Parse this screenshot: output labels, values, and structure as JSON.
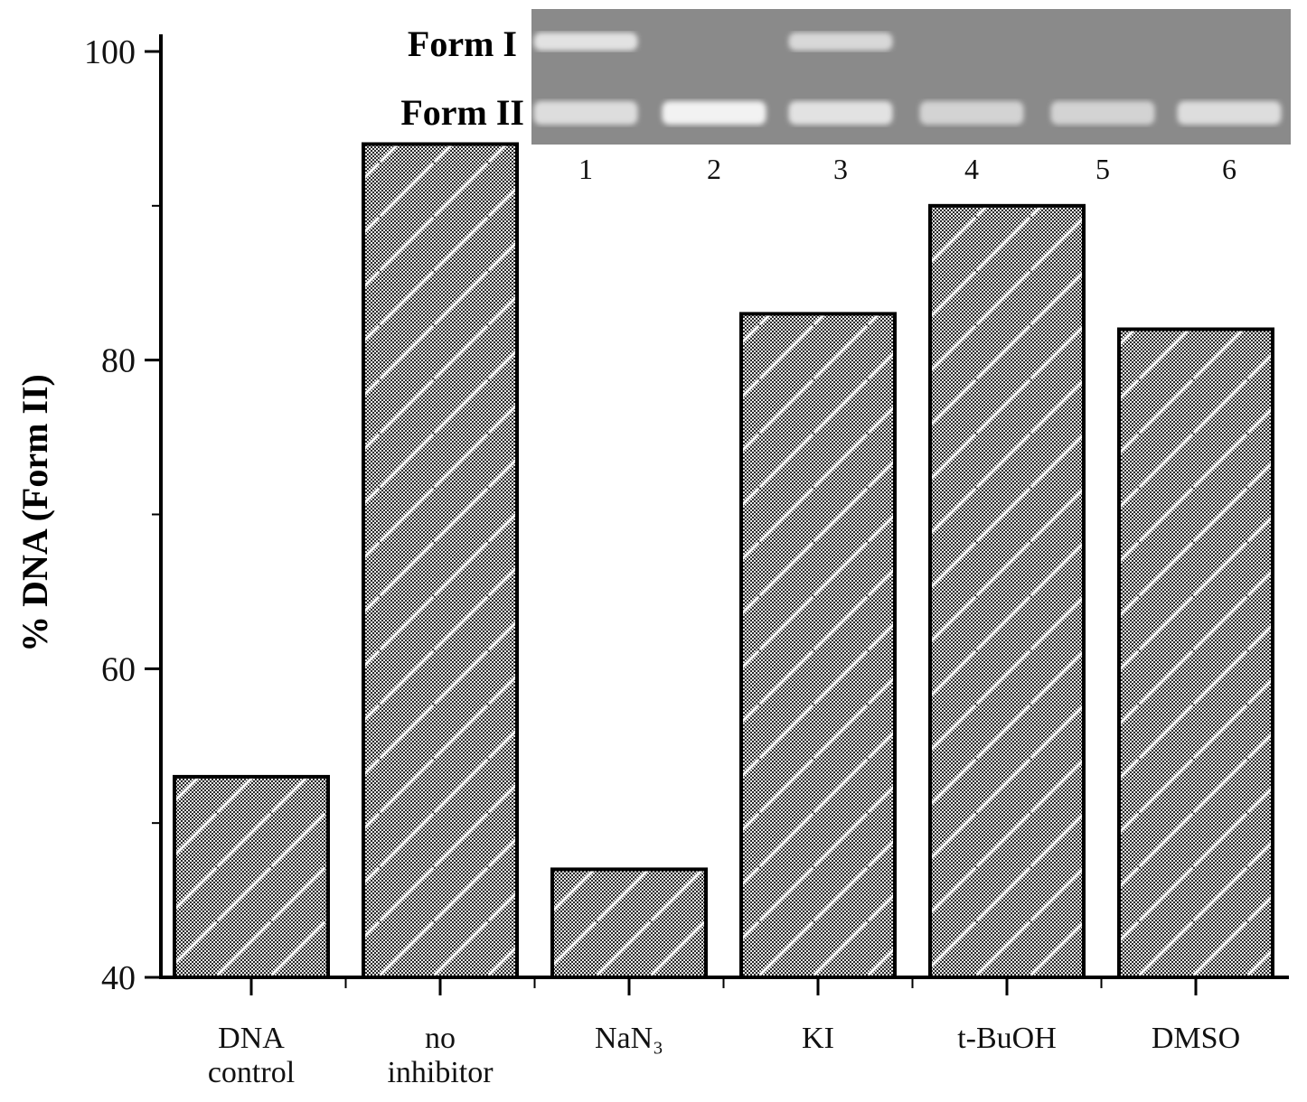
{
  "chart_data": {
    "type": "bar",
    "title": "",
    "xlabel": "",
    "ylabel": "% DNA (Form II)",
    "ylim": [
      40,
      100
    ],
    "yticks": [
      40,
      60,
      80,
      100
    ],
    "categories": [
      [
        "DNA",
        "control"
      ],
      [
        "no",
        "inhibitor"
      ],
      [
        "NaN₃"
      ],
      [
        "KI"
      ],
      [
        "t-BuOH"
      ],
      [
        "DMSO"
      ]
    ],
    "values": [
      53,
      94,
      47,
      83,
      90,
      82
    ],
    "grid": false,
    "legend": "none"
  },
  "gel_inset": {
    "form_labels": [
      "Form I",
      "Form II"
    ],
    "lane_numbers": [
      "1",
      "2",
      "3",
      "4",
      "5",
      "6"
    ],
    "form1_band_intensity": [
      0.85,
      0.0,
      0.75,
      0.0,
      0.0,
      0.0
    ],
    "form2_band_intensity": [
      0.8,
      1.0,
      0.85,
      0.7,
      0.7,
      0.8
    ]
  },
  "colors": {
    "bar_edge": "#000000",
    "bar_fill_dark": "#2a2a2a",
    "bar_fill_light": "#e8e8e8",
    "hatch": "#ffffff",
    "axis": "#000000",
    "gel_bg": "#8a8a8a",
    "gel_band": "#f2f2f2"
  }
}
